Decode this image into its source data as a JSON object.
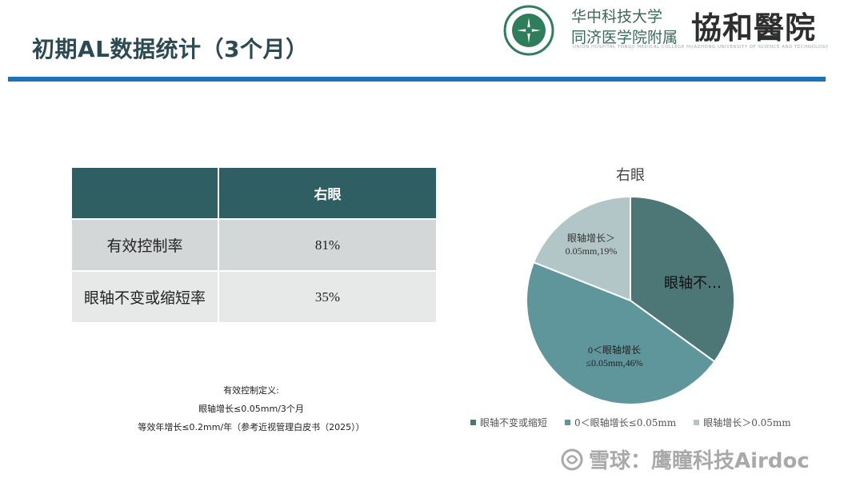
{
  "slide": {
    "title": "初期AL数据统计（3个月）"
  },
  "logo": {
    "university_line1": "华中科技大学",
    "university_line2": "同济医学院附属",
    "hospital_name": "協和醫院",
    "english_line": "UNION HOSPITAL  TONGJI MEDICAL COLLEGE  HUAZHONG UNIVERSITY OF SCIENCE AND TECHNOLOGY",
    "emblem_text": "WUHAN UNION HOSPITAL OF CHINA"
  },
  "table": {
    "header": [
      "",
      "右眼"
    ],
    "rows": [
      {
        "label": "有效控制率",
        "value": "81%"
      },
      {
        "label": "眼轴不变或缩短率",
        "value": "35%"
      }
    ]
  },
  "notes": {
    "line1": "有效控制定义:",
    "line2": "眼轴增长≤0.05mm/3个月",
    "line3": "等效年增长≤0.2mm/年（参考近视管理白皮书（2025））"
  },
  "chart_data": {
    "type": "pie",
    "title": "右眼",
    "slices": [
      {
        "name": "眼轴不变或缩短",
        "value": 35,
        "label": "眼轴不…",
        "color": "#4d7677"
      },
      {
        "name": "0＜眼轴增长≤0.05mm",
        "value": 46,
        "label_line1": "0＜眼轴增长",
        "label_line2": "≤0.05mm,46%",
        "color": "#5f969b"
      },
      {
        "name": "眼轴增长＞0.05mm",
        "value": 19,
        "label_line1": "眼轴增长＞",
        "label_line2": "0.05mm,19%",
        "color": "#b3c6c7"
      }
    ],
    "legend": [
      "眼轴不变或缩短",
      "0＜眼轴增长≤0.05mm",
      "眼轴增长＞0.05mm"
    ],
    "legend_position": "bottom"
  },
  "watermark": {
    "text": "雪球：鹰瞳科技Airdoc"
  }
}
